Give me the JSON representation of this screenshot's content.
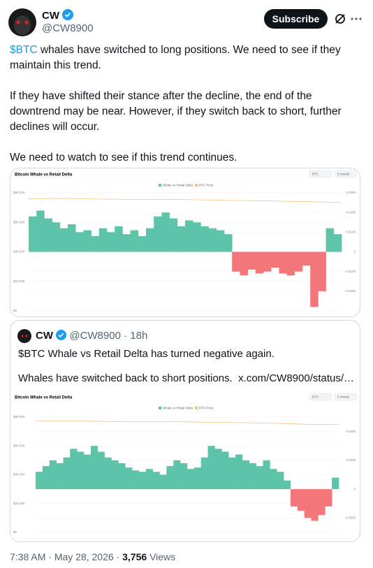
{
  "tweet": {
    "author": {
      "name": "CW",
      "handle": "@CW8900"
    },
    "subscribe": "Subscribe",
    "text": [
      {
        "cashtag": "$BTC",
        "text": "whales have switched to long positions. We need to see if they maintain this trend."
      },
      "If they have shifted their stance after the decline, the end of the downtrend may be near. However, if they switch back to short, further declines will occur.",
      "We need to watch to see if this trend continues."
    ],
    "quote": {
      "name": "CW",
      "handle": "@CW8900",
      "separator": "·",
      "time": "18h",
      "text": [
        "$BTC Whale vs Retail Delta has turned negative again.",
        "Whales have switched back to short positions."
      ],
      "link": "x.com/CW8900/status/…"
    },
    "footer": {
      "time": "7:38 AM",
      "separator": "·",
      "date": "May 28, 2026",
      "views": "3,756",
      "views_label": "Views"
    }
  },
  "chart_data": [
    {
      "type": "bar",
      "title": "Bitcoin Whale vs Retail Delta",
      "controls": [
        "BTC",
        "5 minute"
      ],
      "negative_color": "#f2767a",
      "ylim": [
        -0.03,
        0.03
      ],
      "yticks": [
        {
          "value": 0.03,
          "label": "0.0300"
        },
        {
          "value": 0.02,
          "label": "0.0200"
        },
        {
          "value": 0.01,
          "label": "0.0100"
        },
        0,
        {
          "value": -0.01,
          "label": "-0.0100"
        },
        {
          "value": -0.02,
          "label": "-0.0200"
        }
      ],
      "y2lim": [
        0,
        80000
      ],
      "y2ticks": [
        {
          "value": 80000,
          "label": "$80.00K"
        },
        {
          "value": 60000,
          "label": "$60.00K"
        },
        {
          "value": 40000,
          "label": "$40.00K"
        },
        {
          "value": 20000,
          "label": "$20.00K"
        },
        {
          "value": 0,
          "label": "$0"
        }
      ],
      "series": [
        {
          "name": "Whale vs Retail Delta",
          "color": "#5ec4a9",
          "values": [
            0.018,
            0.021,
            0.017,
            0.015,
            0.012,
            0.014,
            0.01,
            0.011,
            0.008,
            0.012,
            0.01,
            0.013,
            0.009,
            0.011,
            0.008,
            0.012,
            0.018,
            0.02,
            0.017,
            0.013,
            0.016,
            0.015,
            0.013,
            0.012,
            0.011,
            0.009,
            -0.01,
            -0.012,
            -0.009,
            -0.011,
            -0.01,
            -0.008,
            -0.011,
            -0.012,
            -0.01,
            -0.007,
            -0.028,
            -0.02,
            0.012,
            0.009
          ]
        },
        {
          "name": "BTC Price",
          "color": "#f5c27a",
          "axis": "y2",
          "values": [
            76000,
            76200,
            75800,
            75500,
            75600,
            75200,
            74800,
            74500,
            74000,
            73500
          ]
        }
      ]
    },
    {
      "type": "bar",
      "title": "Bitcoin Whale vs Retail Delta",
      "controls": [
        "BTC",
        "5 minute"
      ],
      "negative_color": "#f2767a",
      "ylim": [
        -0.03,
        0.05
      ],
      "yticks": [
        {
          "value": 0.04,
          "label": "0.0400"
        },
        {
          "value": 0.02,
          "label": "0.0200"
        },
        0,
        {
          "value": -0.02,
          "label": "-0.0200"
        }
      ],
      "y2lim": [
        0,
        80000
      ],
      "y2ticks": [
        {
          "value": 80000,
          "label": "$80.00K"
        },
        {
          "value": 60000,
          "label": "$60.00K"
        },
        {
          "value": 40000,
          "label": "$40.00K"
        },
        {
          "value": 20000,
          "label": "$20.00K"
        },
        {
          "value": 0,
          "label": "$0"
        }
      ],
      "series": [
        {
          "name": "Whale vs Retail Delta",
          "color": "#5ec4a9",
          "values": [
            0.012,
            0.016,
            0.02,
            0.018,
            0.022,
            0.028,
            0.026,
            0.024,
            0.03,
            0.026,
            0.022,
            0.02,
            0.018,
            0.015,
            0.013,
            0.012,
            0.014,
            0.012,
            0.01,
            0.016,
            0.02,
            0.018,
            0.014,
            0.015,
            0.022,
            0.03,
            0.028,
            0.026,
            0.022,
            0.024,
            0.02,
            0.018,
            0.016,
            0.02,
            0.014,
            0.012,
            0.006,
            -0.012,
            -0.015,
            -0.02,
            -0.022,
            -0.018,
            -0.012,
            0.008
          ]
        },
        {
          "name": "BTC Price",
          "color": "#f5c27a",
          "axis": "y2",
          "values": [
            77500,
            77400,
            77000,
            76800,
            76900,
            76500,
            76200,
            75800,
            75000,
            74800
          ]
        }
      ]
    }
  ]
}
